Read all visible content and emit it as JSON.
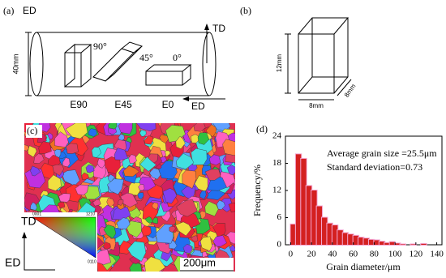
{
  "panel_a": {
    "label": "(a)",
    "direction": "ED",
    "td": "TD",
    "diameter": "40mm",
    "angles": [
      "90°",
      "45°",
      "0°"
    ],
    "samples": [
      "E90",
      "E45",
      "E0"
    ],
    "ed": "ED"
  },
  "panel_b": {
    "label": "(b)",
    "height": "12mm",
    "width": "8mm",
    "depth": "8mm"
  },
  "panel_c": {
    "label": "(c)",
    "td": "TD",
    "ed": "ED",
    "poles": [
      "0001",
      "1210",
      "0110"
    ],
    "scale_bar": "200μm"
  },
  "chart_data": {
    "type": "histogram",
    "panel_label": "(d)",
    "annotations": [
      "Average grain size =25.5μm",
      "Standard deviation=0.73"
    ],
    "x_label": "Grain diameter/μm",
    "y_label": "Frequency/%",
    "bins": [
      0,
      5,
      10,
      15,
      20,
      25,
      30,
      35,
      40,
      45,
      50,
      55,
      60,
      65,
      70,
      75,
      80,
      85,
      90,
      95,
      100,
      105,
      110,
      115,
      120,
      125,
      130
    ],
    "values": [
      4.5,
      20,
      19,
      13,
      12,
      8.5,
      6,
      4.7,
      4.3,
      3.2,
      2.6,
      2.3,
      2,
      1.6,
      1.4,
      1.1,
      1,
      0.7,
      0.4,
      0.6,
      0.3,
      0.1,
      0,
      0.1,
      0,
      0.2
    ],
    "color": "#d42020",
    "xlim": [
      -5,
      145
    ],
    "ylim": [
      0,
      24
    ],
    "xticks": [
      0,
      20,
      40,
      60,
      80,
      100,
      120,
      140
    ],
    "yticks": [
      0,
      6,
      12,
      18,
      24
    ]
  }
}
